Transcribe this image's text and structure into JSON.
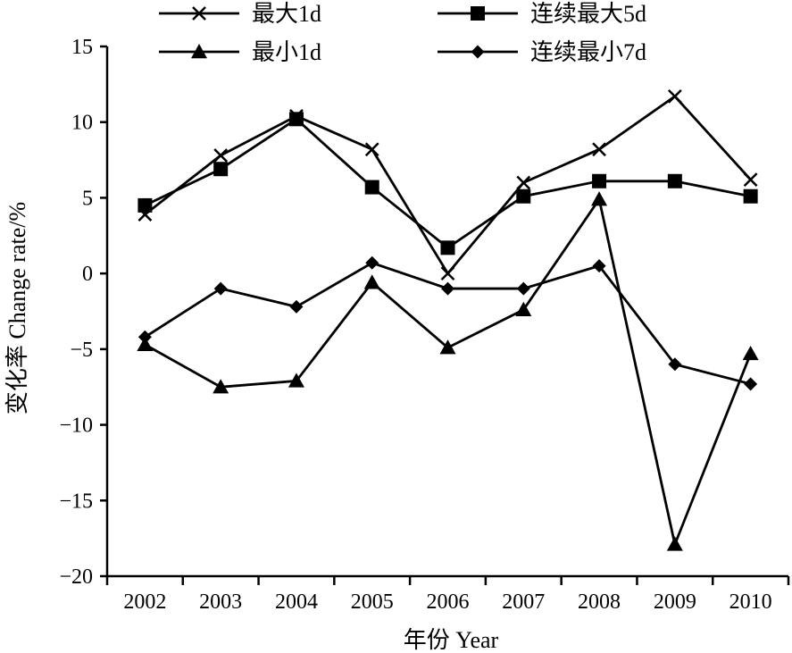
{
  "chart_data": {
    "type": "line",
    "title": "",
    "xlabel": "年份 Year",
    "ylabel": "变化率 Change rate/%",
    "categories": [
      "2002",
      "2003",
      "2004",
      "2005",
      "2006",
      "2007",
      "2008",
      "2009",
      "2010"
    ],
    "ylim": [
      -20,
      15
    ],
    "yticks": [
      15,
      10,
      5,
      0,
      -5,
      -10,
      -15,
      -20
    ],
    "ytick_labels": [
      "15",
      "10",
      "5",
      "0",
      "−5",
      "−10",
      "−15",
      "−20"
    ],
    "grid": false,
    "legend_position": "top",
    "series": [
      {
        "name": "最大1d",
        "marker": "x",
        "values": [
          3.9,
          7.8,
          10.4,
          8.2,
          0.0,
          6.0,
          8.2,
          11.7,
          6.2
        ]
      },
      {
        "name": "连续最大5d",
        "marker": "square",
        "values": [
          4.5,
          6.9,
          10.2,
          5.7,
          1.7,
          5.1,
          6.1,
          6.1,
          5.1
        ]
      },
      {
        "name": "最小1d",
        "marker": "triangle",
        "values": [
          -4.7,
          -7.5,
          -7.1,
          -0.6,
          -4.9,
          -2.4,
          4.9,
          -17.9,
          -5.3
        ]
      },
      {
        "name": "连续最小7d",
        "marker": "diamond",
        "values": [
          -4.2,
          -1.0,
          -2.2,
          0.7,
          -1.0,
          -1.0,
          0.5,
          -6.0,
          -7.3
        ]
      }
    ],
    "colors": {
      "line": "#000000",
      "background": "#ffffff"
    }
  }
}
